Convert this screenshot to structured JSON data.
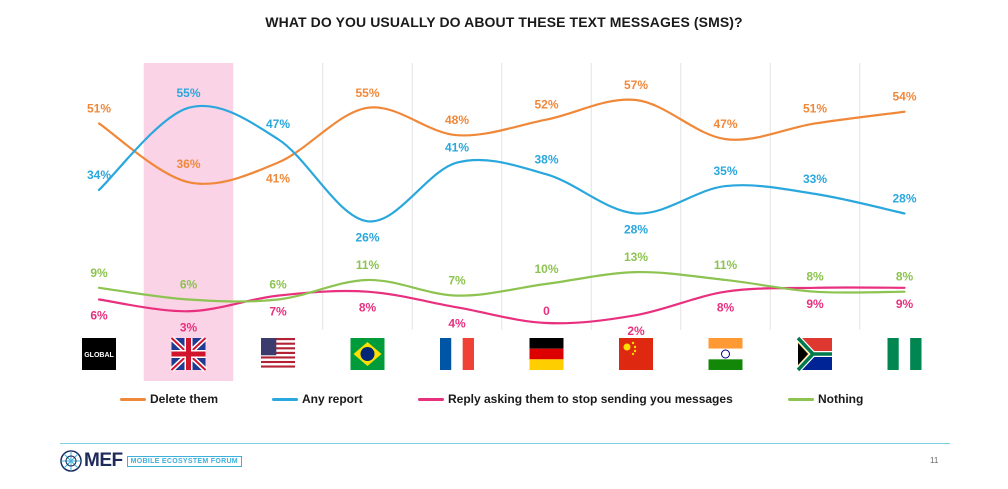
{
  "chart_data": {
    "type": "line",
    "title": "WHAT DO YOU USUALLY DO ABOUT THESE TEXT MESSAGES (SMS)?",
    "categories": [
      "GLOBAL",
      "UK",
      "US",
      "Brazil",
      "France",
      "Germany",
      "China",
      "India",
      "South Africa",
      "Nigeria"
    ],
    "global_label": "GLOBAL",
    "highlight_category": "UK",
    "series": [
      {
        "name": "Delete them",
        "color": "#f0883a",
        "values": [
          51,
          36,
          41,
          55,
          48,
          52,
          57,
          47,
          51,
          54
        ],
        "labels": [
          "51%",
          "36%",
          "41%",
          "55%",
          "48%",
          "52%",
          "57%",
          "47%",
          "51%",
          "54%"
        ]
      },
      {
        "name": "Any report",
        "color": "#2aa7dc",
        "values": [
          34,
          55,
          47,
          26,
          41,
          38,
          28,
          35,
          33,
          28
        ],
        "labels": [
          "34%",
          "55%",
          "47%",
          "26%",
          "41%",
          "38%",
          "28%",
          "35%",
          "33%",
          "28%"
        ]
      },
      {
        "name": "Reply asking them to stop sending you messages",
        "color": "#e8307f",
        "values": [
          6,
          3,
          7,
          8,
          4,
          0,
          2,
          8,
          9,
          9
        ],
        "labels": [
          "6%",
          "3%",
          "7%",
          "8%",
          "4%",
          "0",
          "2%",
          "8%",
          "9%",
          "9%"
        ]
      },
      {
        "name": "Nothing",
        "color": "#8dc351",
        "values": [
          9,
          6,
          6,
          11,
          7,
          10,
          13,
          11,
          8,
          8
        ],
        "labels": [
          "9%",
          "6%",
          "6%",
          "11%",
          "7%",
          "10%",
          "13%",
          "11%",
          "8%",
          "8%"
        ]
      }
    ],
    "legend_position": "bottom",
    "grid": "vertical"
  },
  "footer": {
    "logo_text": "MEF",
    "logo_sub": "MOBILE ECOSYSTEM FORUM",
    "page_number": "11"
  },
  "colors": {
    "highlight": "#fbd3e6",
    "grid": "#e3e3e3",
    "footer_line": "#7fd0e3"
  }
}
